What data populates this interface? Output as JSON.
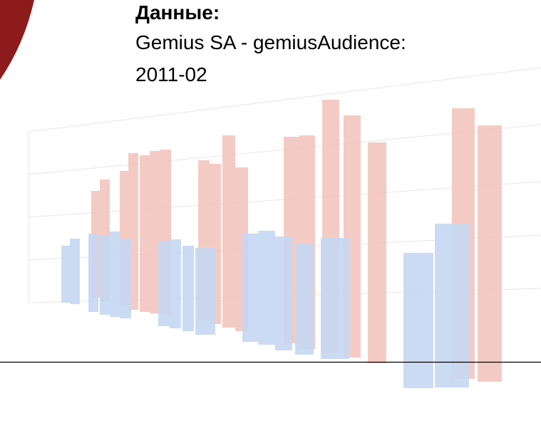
{
  "header": {
    "label": "Данные:",
    "lines": [
      "Gemius SA - gemiusAudience:",
      "2011-02"
    ]
  }
}
